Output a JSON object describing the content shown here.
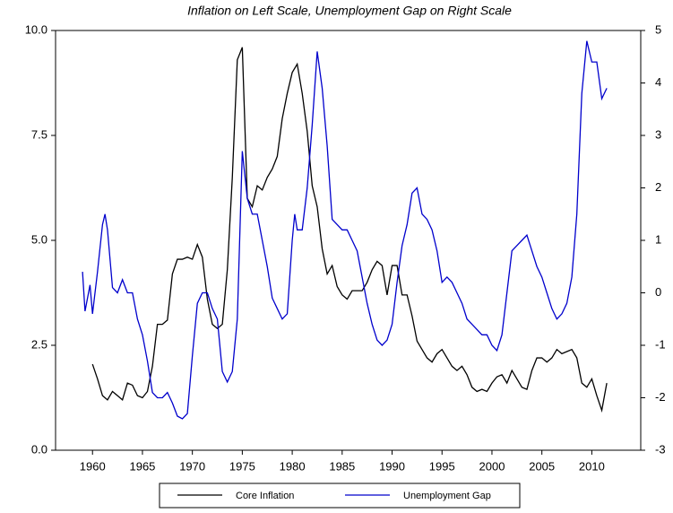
{
  "chart_data": {
    "type": "line",
    "title": "Inflation on Left Scale, Unemployment Gap on Right Scale",
    "xlim": [
      1956.3,
      2014.9
    ],
    "xticks": [
      1960,
      1965,
      1970,
      1975,
      1980,
      1985,
      1990,
      1995,
      2000,
      2005,
      2010
    ],
    "ylim": [
      0,
      10
    ],
    "yticks": [
      {
        "value": 0,
        "label": "0.0"
      },
      2.5,
      {
        "value": 5,
        "label": "5.0"
      },
      7.5,
      {
        "value": 10,
        "label": "10.0"
      }
    ],
    "y2lim": [
      -3,
      5
    ],
    "y2ticks": [
      -3,
      -2,
      -1,
      0,
      1,
      2,
      3,
      4,
      5
    ],
    "series": [
      {
        "name": "Core Inflation",
        "color": "#000000",
        "x": [
          1960,
          1960.5,
          1961,
          1961.5,
          1962,
          1962.5,
          1963,
          1963.5,
          1964,
          1964.5,
          1965,
          1965.5,
          1966,
          1966.5,
          1967,
          1967.5,
          1968,
          1968.5,
          1969,
          1969.5,
          1970,
          1970.5,
          1971,
          1971.5,
          1972,
          1972.5,
          1973,
          1973.5,
          1974,
          1974.5,
          1975,
          1975.5,
          1976,
          1976.5,
          1977,
          1977.5,
          1978,
          1978.5,
          1979,
          1979.5,
          1980,
          1980.5,
          1981,
          1981.5,
          1982,
          1982.5,
          1983,
          1983.5,
          1984,
          1984.5,
          1985,
          1985.5,
          1986,
          1986.5,
          1987,
          1987.5,
          1988,
          1988.5,
          1989,
          1989.5,
          1990,
          1990.5,
          1991,
          1991.5,
          1992,
          1992.5,
          1993,
          1993.5,
          1994,
          1994.5,
          1995,
          1995.5,
          1996,
          1996.5,
          1997,
          1997.5,
          1998,
          1998.5,
          1999,
          1999.5,
          2000,
          2000.5,
          2001,
          2001.5,
          2002,
          2002.5,
          2003,
          2003.5,
          2004,
          2004.5,
          2005,
          2005.5,
          2006,
          2006.5,
          2007,
          2007.5,
          2008,
          2008.5,
          2009,
          2009.5,
          2010,
          2010.5,
          2011,
          2011.5
        ],
        "values": [
          2.05,
          1.7,
          1.3,
          1.2,
          1.4,
          1.3,
          1.2,
          1.6,
          1.55,
          1.3,
          1.25,
          1.4,
          2.0,
          3.0,
          3.0,
          3.1,
          4.2,
          4.55,
          4.55,
          4.6,
          4.55,
          4.9,
          4.6,
          3.6,
          3.0,
          2.9,
          3.0,
          4.3,
          6.5,
          9.3,
          9.6,
          6.0,
          5.8,
          6.3,
          6.2,
          6.5,
          6.7,
          7.0,
          7.9,
          8.5,
          9.0,
          9.2,
          8.5,
          7.6,
          6.3,
          5.8,
          4.8,
          4.2,
          4.4,
          3.9,
          3.7,
          3.6,
          3.8,
          3.8,
          3.8,
          4.0,
          4.3,
          4.5,
          4.4,
          3.7,
          4.4,
          4.4,
          3.7,
          3.7,
          3.2,
          2.6,
          2.4,
          2.2,
          2.1,
          2.3,
          2.4,
          2.2,
          2.0,
          1.9,
          2.0,
          1.8,
          1.5,
          1.4,
          1.45,
          1.4,
          1.6,
          1.75,
          1.8,
          1.6,
          1.9,
          1.7,
          1.5,
          1.45,
          1.9,
          2.2,
          2.2,
          2.1,
          2.2,
          2.4,
          2.3,
          2.35,
          2.4,
          2.2,
          1.6,
          1.5,
          1.7,
          1.3,
          0.95,
          1.6
        ]
      },
      {
        "name": "Unemployment Gap",
        "color": "#0000cc",
        "axis": "y2",
        "x": [
          1959,
          1959.25,
          1959.75,
          1960,
          1960.5,
          1961,
          1961.25,
          1961.5,
          1962,
          1962.5,
          1963,
          1963.5,
          1964,
          1964.5,
          1965,
          1965.5,
          1966,
          1966.5,
          1967,
          1967.5,
          1968,
          1968.5,
          1969,
          1969.5,
          1970,
          1970.5,
          1971,
          1971.5,
          1972,
          1972.5,
          1973,
          1973.5,
          1974,
          1974.5,
          1975,
          1975.5,
          1976,
          1976.5,
          1977,
          1977.5,
          1978,
          1978.5,
          1979,
          1979.5,
          1980,
          1980.25,
          1980.5,
          1981,
          1981.5,
          1982,
          1982.5,
          1983,
          1983.5,
          1984,
          1984.5,
          1985,
          1985.5,
          1986,
          1986.5,
          1987,
          1987.5,
          1988,
          1988.5,
          1989,
          1989.5,
          1990,
          1990.5,
          1991,
          1991.5,
          1992,
          1992.5,
          1993,
          1993.5,
          1994,
          1994.5,
          1995,
          1995.5,
          1996,
          1996.5,
          1997,
          1997.5,
          1998,
          1998.5,
          1999,
          1999.5,
          2000,
          2000.5,
          2001,
          2001.5,
          2002,
          2002.5,
          2003,
          2003.5,
          2004,
          2004.5,
          2005,
          2005.5,
          2006,
          2006.5,
          2007,
          2007.5,
          2008,
          2008.5,
          2009,
          2009.5,
          2010,
          2010.5,
          2011,
          2011.5
        ],
        "values": [
          0.4,
          -0.35,
          0.15,
          -0.4,
          0.4,
          1.3,
          1.5,
          1.2,
          0.1,
          0.0,
          0.25,
          0.0,
          0.0,
          -0.5,
          -0.8,
          -1.3,
          -1.9,
          -2.0,
          -2.0,
          -1.9,
          -2.1,
          -2.35,
          -2.4,
          -2.3,
          -1.2,
          -0.2,
          0.0,
          0.0,
          -0.3,
          -0.5,
          -1.5,
          -1.7,
          -1.5,
          -0.5,
          2.7,
          1.8,
          1.5,
          1.5,
          1.0,
          0.5,
          -0.1,
          -0.3,
          -0.5,
          -0.4,
          1.0,
          1.5,
          1.2,
          1.2,
          2.0,
          3.2,
          4.6,
          3.9,
          2.8,
          1.4,
          1.3,
          1.2,
          1.2,
          1.0,
          0.8,
          0.3,
          -0.2,
          -0.6,
          -0.9,
          -1.0,
          -0.9,
          -0.6,
          0.2,
          0.9,
          1.3,
          1.9,
          2.0,
          1.5,
          1.4,
          1.2,
          0.8,
          0.2,
          0.3,
          0.2,
          0.0,
          -0.2,
          -0.5,
          -0.6,
          -0.7,
          -0.8,
          -0.8,
          -1.0,
          -1.1,
          -0.8,
          0.0,
          0.8,
          0.9,
          1.0,
          1.1,
          0.8,
          0.5,
          0.3,
          0.0,
          -0.3,
          -0.5,
          -0.4,
          -0.2,
          0.3,
          1.5,
          3.8,
          4.8,
          4.4,
          4.4,
          3.7,
          3.9
        ]
      }
    ]
  }
}
